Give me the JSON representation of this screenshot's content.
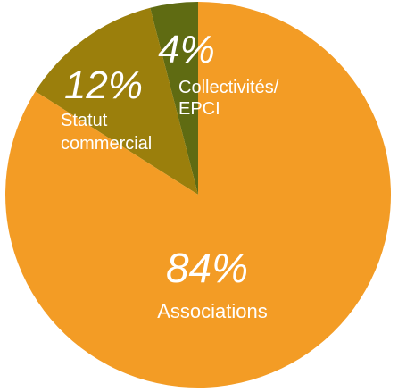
{
  "chart_data": {
    "type": "pie",
    "slices": [
      {
        "label": "Associations",
        "value": 84,
        "value_label": "84%",
        "color": "#f39c25"
      },
      {
        "label": "Statut commercial",
        "label_lines": [
          "Statut",
          "commercial"
        ],
        "value": 12,
        "value_label": "12%",
        "color": "#9b7f0c"
      },
      {
        "label": "Collectivités/EPCI",
        "label_lines": [
          "Collectivités/",
          "EPCI"
        ],
        "value": 4,
        "value_label": "4%",
        "color": "#5f6b12"
      }
    ]
  }
}
